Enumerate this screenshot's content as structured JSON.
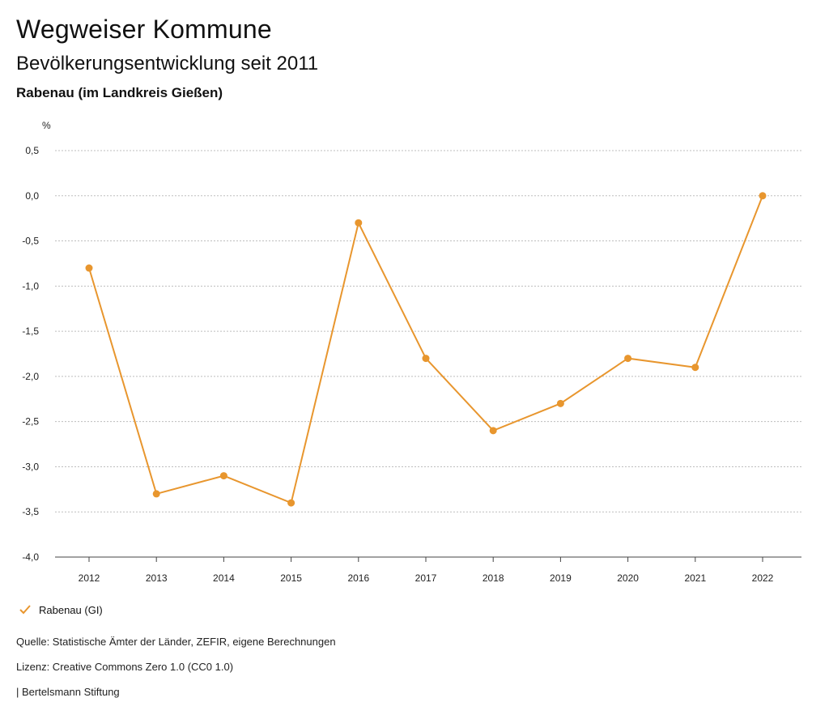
{
  "header": {
    "title": "Wegweiser Kommune",
    "subtitle": "Bevölkerungsentwicklung seit 2011",
    "region": "Rabenau (im Landkreis Gießen)"
  },
  "legend": {
    "label": "Rabenau (GI)"
  },
  "footer": {
    "source": "Quelle: Statistische Ämter der Länder, ZEFIR, eigene Berechnungen",
    "license": "Lizenz: Creative Commons Zero 1.0 (CC0 1.0)",
    "brand": "| Bertelsmann Stiftung"
  },
  "chart_data": {
    "type": "line",
    "ylabel": "%",
    "ylim": [
      -4.0,
      0.5
    ],
    "yticks": [
      "0,5",
      "0,0",
      "-0,5",
      "-1,0",
      "-1,5",
      "-2,0",
      "-2,5",
      "-3,0",
      "-3,5",
      "-4,0"
    ],
    "ytick_values": [
      0.5,
      0.0,
      -0.5,
      -1.0,
      -1.5,
      -2.0,
      -2.5,
      -3.0,
      -3.5,
      -4.0
    ],
    "categories": [
      "2012",
      "2013",
      "2014",
      "2015",
      "2016",
      "2017",
      "2018",
      "2019",
      "2020",
      "2021",
      "2022"
    ],
    "series": [
      {
        "name": "Rabenau (GI)",
        "color": "#e8962e",
        "values": [
          -0.8,
          -3.3,
          -3.1,
          -3.4,
          -0.3,
          -1.8,
          -2.6,
          -2.3,
          -1.8,
          -1.9,
          0.0
        ]
      }
    ],
    "grid": true,
    "legend_position": "bottom-left"
  }
}
